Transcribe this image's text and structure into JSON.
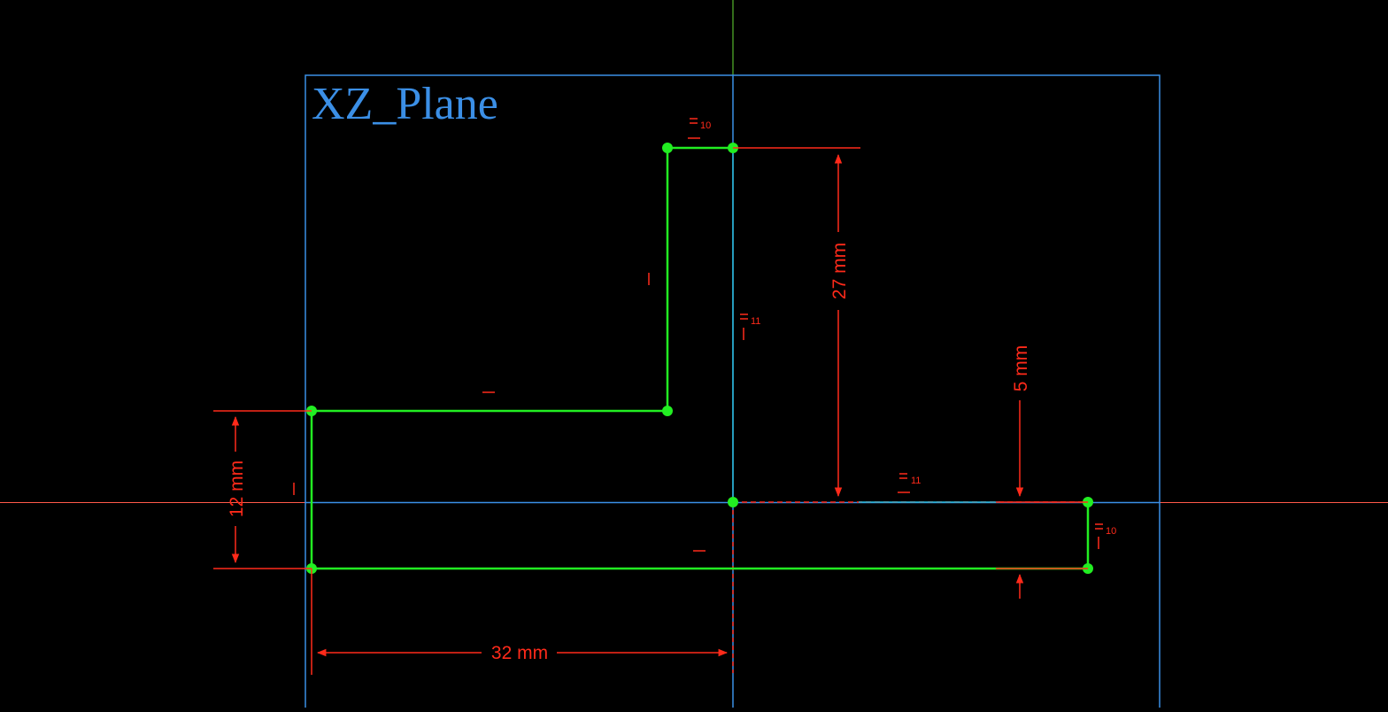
{
  "plane": {
    "label": "XZ_Plane"
  },
  "dimensions": {
    "height_27": "27 mm",
    "height_12": "12 mm",
    "width_32": "32 mm",
    "offset_5": "5 mm"
  },
  "constraints": {
    "equal_10": "10",
    "equal_11": "11"
  },
  "colors": {
    "background": "#000000",
    "sketch_geometry": "#22ee22",
    "sketch_vertex": "#22ee22",
    "constraint": "#ff2a1a",
    "plane": "#3b8fe6",
    "axis_horizontal": "#ff5a4a",
    "axis_vertical": "#66dd33"
  }
}
